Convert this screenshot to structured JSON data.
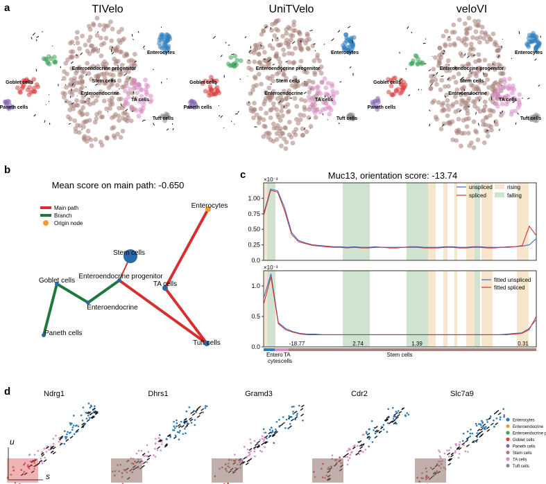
{
  "panel_labels": {
    "a": "a",
    "b": "b",
    "c": "c",
    "d": "d"
  },
  "colors": {
    "enterocytes": "#2b7bbd",
    "enteroendocrine": "#f39c2b",
    "enteroendocrine_progenitor": "#3da35a",
    "goblet": "#d94040",
    "paneth": "#8466b0",
    "stem": "#a88079",
    "ta": "#d98bc4",
    "tuft": "#8a8a8a",
    "main_path": "#d62f2f",
    "branch": "#1d7a3a",
    "origin": "#f39c2b",
    "falling": "#cfe3cf",
    "rising": "#f6e7cc",
    "unspliced": "#3e68c9",
    "spliced": "#d62f2f"
  },
  "panel_a": {
    "methods": [
      {
        "title": "TIVelo"
      },
      {
        "title": "UniTVelo"
      },
      {
        "title": "veloVI"
      }
    ],
    "cluster_labels": {
      "enterocytes": "Enterocytes",
      "enteroendocrine_progenitor": "Enteroendocrine progenitor",
      "stem": "Stem cells",
      "enteroendocrine": "Enteroendocrine",
      "goblet": "Goblet cells",
      "paneth": "Paneth cells",
      "ta": "TA cells",
      "tuft": "Tuft cells"
    }
  },
  "panel_b": {
    "title": "Mean score on main path: -0.650",
    "legend": [
      "Main path",
      "Branch",
      "Origin node"
    ],
    "nodes": {
      "enterocytes": "Enterocytes",
      "stem": "Stem cells",
      "ee_prog": "Enteroendocrine progenitor",
      "ta": "TA cells",
      "goblet": "Goblet cells",
      "ee": "Enteroendocrine",
      "paneth": "Paneth cells",
      "tuft": "Tuft cells"
    }
  },
  "chart_data": [
    {
      "type": "line",
      "title": "Muc13, orientation score: -13.74",
      "ylim": [
        0,
        1.25
      ],
      "scale_note": "×10⁻³",
      "yticks": [
        "0.0",
        "0.25",
        "0.50",
        "0.75",
        "1.00"
      ],
      "legend": [
        "unspliced",
        "spliced"
      ],
      "region_legend": [
        "rising",
        "falling"
      ],
      "series": [
        {
          "name": "unspliced",
          "values": [
            0.75,
            1.15,
            1.12,
            0.85,
            0.45,
            0.32,
            0.28,
            0.25,
            0.24,
            0.23,
            0.22,
            0.22,
            0.21,
            0.22,
            0.21,
            0.21,
            0.22,
            0.21,
            0.21,
            0.21,
            0.21,
            0.22,
            0.22,
            0.21,
            0.21,
            0.21,
            0.22,
            0.22,
            0.21,
            0.21,
            0.22,
            0.22,
            0.21,
            0.21,
            0.21,
            0.22,
            0.22,
            0.23,
            0.25,
            0.35
          ]
        },
        {
          "name": "spliced",
          "values": [
            0.72,
            1.13,
            1.1,
            0.8,
            0.42,
            0.3,
            0.27,
            0.24,
            0.23,
            0.22,
            0.21,
            0.21,
            0.2,
            0.21,
            0.2,
            0.2,
            0.21,
            0.21,
            0.2,
            0.2,
            0.21,
            0.21,
            0.21,
            0.2,
            0.2,
            0.2,
            0.21,
            0.21,
            0.2,
            0.2,
            0.21,
            0.21,
            0.2,
            0.2,
            0.21,
            0.21,
            0.22,
            0.24,
            0.55,
            0.4
          ]
        }
      ]
    },
    {
      "type": "line",
      "ylim": [
        0,
        1.25
      ],
      "scale_note": "×10⁻³",
      "yticks": [
        "0.0",
        "0.5",
        "1.0"
      ],
      "legend": [
        "fitted unspliced",
        "fitted spliced"
      ],
      "segment_scores": [
        "-18.77",
        "2.74",
        "1.39",
        "0.31"
      ],
      "cluster_axis": {
        "enterocytes": "Entero\ncytes",
        "ta": "TA\ncells",
        "stem": "Stem cells"
      },
      "series": [
        {
          "name": "fitted unspliced",
          "values": [
            0.8,
            1.2,
            0.4,
            0.3,
            0.25,
            0.22,
            0.21,
            0.21,
            0.2,
            0.2,
            0.2,
            0.2,
            0.2,
            0.2,
            0.2,
            0.2,
            0.2,
            0.2,
            0.2,
            0.2,
            0.2,
            0.2,
            0.2,
            0.2,
            0.2,
            0.2,
            0.2,
            0.2,
            0.2,
            0.2,
            0.2,
            0.2,
            0.2,
            0.21,
            0.22,
            0.23,
            0.3,
            0.45
          ]
        },
        {
          "name": "fitted spliced",
          "values": [
            0.7,
            1.15,
            0.38,
            0.28,
            0.24,
            0.21,
            0.2,
            0.2,
            0.2,
            0.2,
            0.2,
            0.2,
            0.2,
            0.2,
            0.2,
            0.2,
            0.2,
            0.2,
            0.2,
            0.2,
            0.2,
            0.2,
            0.2,
            0.2,
            0.2,
            0.2,
            0.2,
            0.2,
            0.2,
            0.2,
            0.2,
            0.2,
            0.2,
            0.2,
            0.21,
            0.22,
            0.28,
            0.5
          ]
        }
      ]
    }
  ],
  "panel_d": {
    "genes": [
      "Ndrg1",
      "Dhrs1",
      "Gramd3",
      "Cdr2",
      "Slc7a9"
    ],
    "axis_u": "u",
    "axis_s": "s",
    "legend": [
      {
        "label": "Enterocytes",
        "key": "enterocytes"
      },
      {
        "label": "Enteroendocrine",
        "key": "enteroendocrine"
      },
      {
        "label": "Enteroendocrine progenitor",
        "key": "enteroendocrine_progenitor"
      },
      {
        "label": "Goblet cells",
        "key": "goblet"
      },
      {
        "label": "Paneth cells",
        "key": "paneth"
      },
      {
        "label": "Stem cells",
        "key": "stem"
      },
      {
        "label": "TA cells",
        "key": "ta"
      },
      {
        "label": "Tuft cells",
        "key": "tuft"
      }
    ]
  }
}
